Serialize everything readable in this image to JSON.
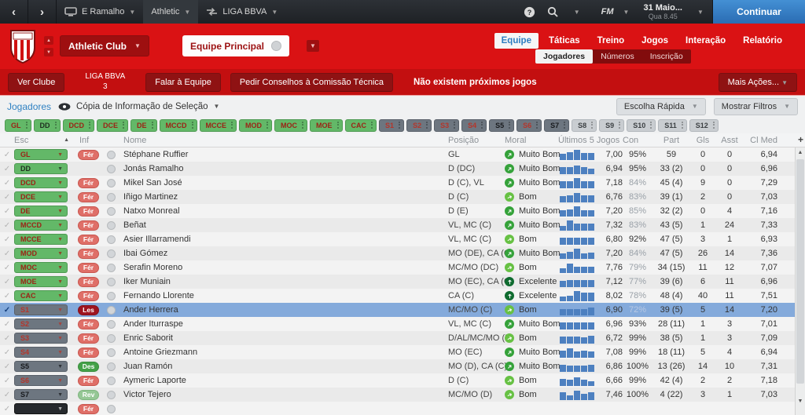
{
  "topbar": {
    "back": "‹",
    "forward": "›",
    "manager": "E Ramalho",
    "team": "Athletic",
    "competition": "LIGA BBVA",
    "fm": "FM",
    "date": "31 Maio...",
    "time": "Qua 8.45",
    "continue": "Continuar"
  },
  "clubbar": {
    "club": "Athletic Club",
    "squad": "Equipe Principal",
    "tabs": [
      "Equipe",
      "Táticas",
      "Treino",
      "Jogos",
      "Interação",
      "Relatório"
    ],
    "active_tab": "Equipe",
    "subtabs": [
      "Jogadores",
      "Números",
      "Inscrição"
    ],
    "active_subtab": "Jogadores"
  },
  "toolbar": {
    "ver_clube": "Ver Clube",
    "league": "LIGA BBVA",
    "league_pos": "3",
    "falar": "Falar à Equipe",
    "pedir": "Pedir Conselhos à Comissão Técnica",
    "no_games": "Não existem próximos jogos",
    "mais_acoes": "Mais Ações..."
  },
  "viewbar": {
    "title": "Jogadores",
    "view_label": "Cópia de Informação de Seleção",
    "quick_pick": "Escolha Rápida",
    "show_filters": "Mostrar Filtros"
  },
  "filters": {
    "buttons": [
      {
        "label": "GL",
        "style": "green",
        "red": true
      },
      {
        "label": "DD",
        "style": "green",
        "red": false
      },
      {
        "label": "DCD",
        "style": "green",
        "red": true
      },
      {
        "label": "DCE",
        "style": "green",
        "red": true
      },
      {
        "label": "DE",
        "style": "green",
        "red": true
      },
      {
        "label": "MCCD",
        "style": "green",
        "red": true
      },
      {
        "label": "MCCE",
        "style": "green",
        "red": true
      },
      {
        "label": "MOD",
        "style": "green",
        "red": true
      },
      {
        "label": "MOC",
        "style": "green",
        "red": true
      },
      {
        "label": "MOE",
        "style": "green",
        "red": true
      },
      {
        "label": "CAC",
        "style": "green",
        "red": true
      },
      {
        "label": "S1",
        "style": "slate",
        "red": true
      },
      {
        "label": "S2",
        "style": "slate",
        "red": true
      },
      {
        "label": "S3",
        "style": "slate",
        "red": true
      },
      {
        "label": "S4",
        "style": "slate",
        "red": true
      },
      {
        "label": "S5",
        "style": "slate",
        "red": false
      },
      {
        "label": "S6",
        "style": "slate",
        "red": true
      },
      {
        "label": "S7",
        "style": "slate",
        "red": false
      },
      {
        "label": "S8",
        "style": "light",
        "red": false
      },
      {
        "label": "S9",
        "style": "light",
        "red": false
      },
      {
        "label": "S10",
        "style": "light",
        "red": false
      },
      {
        "label": "S11",
        "style": "light",
        "red": false
      },
      {
        "label": "S12",
        "style": "light",
        "red": false
      }
    ]
  },
  "table": {
    "columns": {
      "esc": "Esc",
      "inf": "Inf",
      "nome": "Nome",
      "posicao": "Posição",
      "moral": "Moral",
      "ultimos": "Últimos 5 Jogos",
      "con": "Con",
      "part": "Part",
      "gls": "Gls",
      "asst": "Asst",
      "med": "Cl Med",
      "add": "+"
    },
    "rows": [
      {
        "esc": "GL",
        "style": "green",
        "red": true,
        "inf": "Fér",
        "inf_type": "fer",
        "name": "Stéphane Ruffier",
        "pos": "GL",
        "moral": "Muito Bom",
        "moral_type": "muito-bom",
        "bars": [
          8,
          10,
          13,
          9,
          9
        ],
        "rating": "7,00",
        "con": "95%",
        "con_dim": false,
        "part": "59",
        "gls": "0",
        "asst": "0",
        "med": "6,94",
        "selected": false
      },
      {
        "esc": "DD",
        "style": "green",
        "red": false,
        "inf": "",
        "inf_type": "none",
        "name": "Jonás Ramalho",
        "pos": "D (DC)",
        "moral": "Muito Bom",
        "moral_type": "muito-bom",
        "bars": [
          9,
          9,
          11,
          9,
          7
        ],
        "rating": "6,94",
        "con": "95%",
        "con_dim": false,
        "part": "33 (2)",
        "gls": "0",
        "asst": "0",
        "med": "6,96",
        "selected": false
      },
      {
        "esc": "DCD",
        "style": "green",
        "red": true,
        "inf": "Fér",
        "inf_type": "fer",
        "name": "Mikel San José",
        "pos": "D (C), VL",
        "moral": "Muito Bom",
        "moral_type": "muito-bom",
        "bars": [
          9,
          9,
          13,
          9,
          9
        ],
        "rating": "7,18",
        "con": "84%",
        "con_dim": true,
        "part": "45 (4)",
        "gls": "9",
        "asst": "0",
        "med": "7,29",
        "selected": false
      },
      {
        "esc": "DCE",
        "style": "green",
        "red": true,
        "inf": "Fér",
        "inf_type": "fer",
        "name": "Iñigo Martinez",
        "pos": "D (C)",
        "moral": "Bom",
        "moral_type": "bom",
        "bars": [
          8,
          9,
          12,
          9,
          9
        ],
        "rating": "6,76",
        "con": "83%",
        "con_dim": true,
        "part": "39 (1)",
        "gls": "2",
        "asst": "0",
        "med": "7,03",
        "selected": false
      },
      {
        "esc": "DE",
        "style": "green",
        "red": true,
        "inf": "Fér",
        "inf_type": "fer",
        "name": "Natxo Monreal",
        "pos": "D (E)",
        "moral": "Muito Bom",
        "moral_type": "muito-bom",
        "bars": [
          8,
          9,
          13,
          8,
          8
        ],
        "rating": "7,20",
        "con": "85%",
        "con_dim": true,
        "part": "32 (2)",
        "gls": "0",
        "asst": "4",
        "med": "7,16",
        "selected": false
      },
      {
        "esc": "MCCD",
        "style": "green",
        "red": true,
        "inf": "Fér",
        "inf_type": "fer",
        "name": "Beñat",
        "pos": "VL, MC (C)",
        "moral": "Muito Bom",
        "moral_type": "muito-bom",
        "bars": [
          6,
          13,
          9,
          9,
          9
        ],
        "rating": "7,32",
        "con": "83%",
        "con_dim": true,
        "part": "43 (5)",
        "gls": "1",
        "asst": "24",
        "med": "7,33",
        "selected": false
      },
      {
        "esc": "MCCE",
        "style": "green",
        "red": true,
        "inf": "Fér",
        "inf_type": "fer",
        "name": "Asier Illarramendi",
        "pos": "VL, MC (C)",
        "moral": "Bom",
        "moral_type": "bom",
        "bars": [
          9,
          9,
          9,
          9,
          9
        ],
        "rating": "6,80",
        "con": "92%",
        "con_dim": false,
        "part": "47 (5)",
        "gls": "3",
        "asst": "1",
        "med": "6,93",
        "selected": false
      },
      {
        "esc": "MOD",
        "style": "green",
        "red": true,
        "inf": "Fér",
        "inf_type": "fer",
        "name": "Ibai Gómez",
        "pos": "MO (DE), CA (C)",
        "moral": "Muito Bom",
        "moral_type": "muito-bom",
        "bars": [
          7,
          9,
          13,
          7,
          8
        ],
        "rating": "7,20",
        "con": "84%",
        "con_dim": true,
        "part": "47 (5)",
        "gls": "26",
        "asst": "14",
        "med": "7,36",
        "selected": false
      },
      {
        "esc": "MOC",
        "style": "green",
        "red": true,
        "inf": "Fér",
        "inf_type": "fer",
        "name": "Serafin Moreno",
        "pos": "MC/MO (DC)",
        "moral": "Bom",
        "moral_type": "bom",
        "bars": [
          6,
          12,
          8,
          8,
          8
        ],
        "rating": "7,76",
        "con": "79%",
        "con_dim": true,
        "part": "34 (15)",
        "gls": "11",
        "asst": "12",
        "med": "7,07",
        "selected": false
      },
      {
        "esc": "MOE",
        "style": "green",
        "red": true,
        "inf": "Fér",
        "inf_type": "fer",
        "name": "Iker Muniain",
        "pos": "MO (EC), CA (C)",
        "moral": "Excelente",
        "moral_type": "excelente",
        "bars": [
          8,
          9,
          9,
          9,
          9
        ],
        "rating": "7,12",
        "con": "77%",
        "con_dim": true,
        "part": "39 (6)",
        "gls": "6",
        "asst": "11",
        "med": "6,96",
        "selected": false
      },
      {
        "esc": "CAC",
        "style": "green",
        "red": true,
        "inf": "Fér",
        "inf_type": "fer",
        "name": "Fernando Llorente",
        "pos": "CA (C)",
        "moral": "Excelente",
        "moral_type": "excelente",
        "bars": [
          6,
          7,
          13,
          11,
          11
        ],
        "rating": "8,02",
        "con": "78%",
        "con_dim": true,
        "part": "48 (4)",
        "gls": "40",
        "asst": "11",
        "med": "7,51",
        "selected": false
      },
      {
        "esc": "S1",
        "style": "slate",
        "red": true,
        "inf": "Les",
        "inf_type": "les",
        "name": "Ander Herrera",
        "pos": "MC/MO (C)",
        "moral": "Bom",
        "moral_type": "bom",
        "bars": [
          8,
          8,
          8,
          8,
          10
        ],
        "rating": "6,90",
        "con": "72%",
        "con_dim": true,
        "part": "39 (5)",
        "gls": "5",
        "asst": "14",
        "med": "7,20",
        "selected": true
      },
      {
        "esc": "S2",
        "style": "slate",
        "red": true,
        "inf": "Fér",
        "inf_type": "fer",
        "name": "Ander Iturraspe",
        "pos": "VL, MC (C)",
        "moral": "Muito Bom",
        "moral_type": "muito-bom",
        "bars": [
          9,
          9,
          9,
          9,
          9
        ],
        "rating": "6,96",
        "con": "93%",
        "con_dim": false,
        "part": "28 (11)",
        "gls": "1",
        "asst": "3",
        "med": "7,01",
        "selected": false
      },
      {
        "esc": "S3",
        "style": "slate",
        "red": true,
        "inf": "Fér",
        "inf_type": "fer",
        "name": "Enric Saborit",
        "pos": "D/AL/MC/MO (E)",
        "moral": "Bom",
        "moral_type": "bom",
        "bars": [
          9,
          9,
          9,
          8,
          10
        ],
        "rating": "6,72",
        "con": "99%",
        "con_dim": false,
        "part": "38 (5)",
        "gls": "1",
        "asst": "3",
        "med": "7,09",
        "selected": false
      },
      {
        "esc": "S4",
        "style": "slate",
        "red": true,
        "inf": "Fér",
        "inf_type": "fer",
        "name": "Antoine Griezmann",
        "pos": "MO (EC)",
        "moral": "Muito Bom",
        "moral_type": "muito-bom",
        "bars": [
          9,
          12,
          8,
          9,
          8
        ],
        "rating": "7,08",
        "con": "99%",
        "con_dim": false,
        "part": "18 (11)",
        "gls": "5",
        "asst": "4",
        "med": "6,94",
        "selected": false
      },
      {
        "esc": "S5",
        "style": "slate",
        "red": false,
        "inf": "Des",
        "inf_type": "des",
        "name": "Juan Ramón",
        "pos": "MO (D), CA (C)",
        "moral": "Muito Bom",
        "moral_type": "muito-bom",
        "bars": [
          9,
          8,
          8,
          8,
          9
        ],
        "rating": "6,86",
        "con": "100%",
        "con_dim": false,
        "part": "13 (26)",
        "gls": "14",
        "asst": "10",
        "med": "7,31",
        "selected": false
      },
      {
        "esc": "S6",
        "style": "slate",
        "red": true,
        "inf": "Fér",
        "inf_type": "fer",
        "name": "Aymeric Laporte",
        "pos": "D (C)",
        "moral": "Bom",
        "moral_type": "bom",
        "bars": [
          9,
          8,
          11,
          8,
          6
        ],
        "rating": "6,66",
        "con": "99%",
        "con_dim": false,
        "part": "42 (4)",
        "gls": "2",
        "asst": "2",
        "med": "7,18",
        "selected": false
      },
      {
        "esc": "S7",
        "style": "slate",
        "red": false,
        "inf": "Rev",
        "inf_type": "rev",
        "name": "Victor Tejero",
        "pos": "MC/MO (D)",
        "moral": "Bom",
        "moral_type": "bom",
        "bars": [
          10,
          6,
          12,
          8,
          10
        ],
        "rating": "7,46",
        "con": "100%",
        "con_dim": false,
        "part": "4 (22)",
        "gls": "3",
        "asst": "1",
        "med": "7,03",
        "selected": false
      },
      {
        "esc": "",
        "style": "dark",
        "red": false,
        "inf": "Fér",
        "inf_type": "fer",
        "name": "",
        "pos": "",
        "moral": "",
        "moral_type": "none",
        "bars": [],
        "rating": "",
        "con": "",
        "con_dim": false,
        "part": "",
        "gls": "",
        "asst": "",
        "med": "",
        "selected": false
      }
    ]
  },
  "colors": {
    "brand_red": "#da1214",
    "toolbar_red": "#c30f10",
    "accent_blue": "#2d7dc1",
    "continue_blue": "#3a82c4",
    "selected_row": "#84aadb",
    "bar_blue": "#4d80c0",
    "green_button": "#63b868",
    "slate_button": "#6d7680"
  }
}
